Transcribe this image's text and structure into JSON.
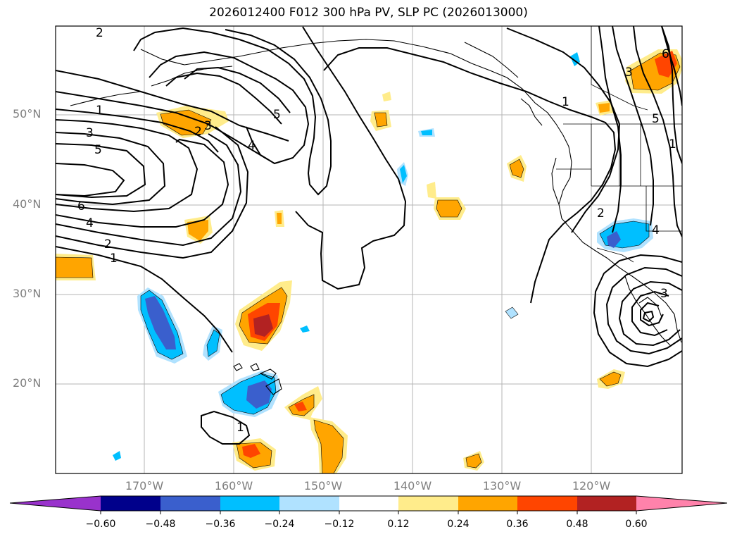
{
  "title": "2026012400 F012 300 hPa PV, SLP PC (2026013000)",
  "latitude_labels": [
    "50°N",
    "40°N",
    "30°N",
    "20°N"
  ],
  "longitude_labels": [
    "170°W",
    "160°W",
    "150°W",
    "140°W",
    "130°W",
    "120°W"
  ],
  "colorbar": {
    "ticks": [
      "−0.60",
      "−0.48",
      "−0.36",
      "−0.24",
      "−0.12",
      "0.12",
      "0.24",
      "0.36",
      "0.48",
      "0.60"
    ],
    "colors": [
      "#9932cc",
      "#00008b",
      "#3a5fcd",
      "#00bfff",
      "#b0e2ff",
      "#ffffff",
      "#ffec8b",
      "#ffa500",
      "#ff4500",
      "#b22222",
      "#ff82ab"
    ]
  },
  "contour_labels": [
    "2",
    "1",
    "3",
    "5",
    "6",
    "4",
    "2",
    "1",
    "2",
    "3",
    "5",
    "4",
    "1",
    "1",
    "3",
    "5",
    "6",
    "2",
    "4",
    "3",
    "1"
  ]
}
